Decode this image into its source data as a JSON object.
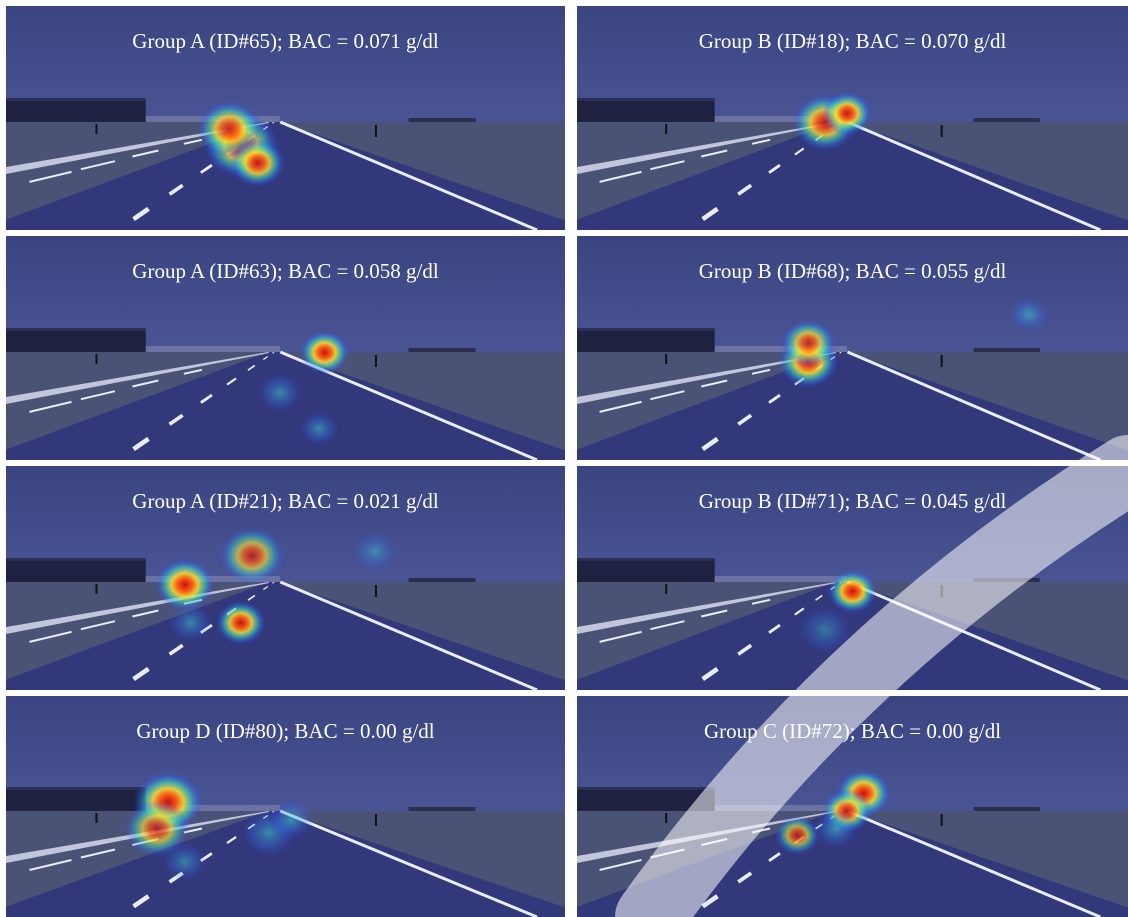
{
  "panels": [
    {
      "caption": "Group A (ID#65); BAC = 0.071 g/dl",
      "blobs": [
        [
          0.42,
          0.62,
          30,
          0.85
        ],
        [
          0.4,
          0.55,
          26,
          0.8
        ],
        [
          0.45,
          0.7,
          22,
          0.9
        ]
      ]
    },
    {
      "caption": "Group B (ID#18); BAC = 0.070 g/dl",
      "blobs": [
        [
          0.45,
          0.52,
          26,
          0.85
        ],
        [
          0.49,
          0.48,
          20,
          0.95
        ]
      ]
    },
    {
      "caption": "Group A (ID#63); BAC = 0.058 g/dl",
      "blobs": [
        [
          0.57,
          0.52,
          20,
          1.0
        ],
        [
          0.49,
          0.7,
          18,
          0.35
        ],
        [
          0.56,
          0.86,
          16,
          0.35
        ]
      ]
    },
    {
      "caption": "Group B (ID#68); BAC = 0.055 g/dl",
      "blobs": [
        [
          0.42,
          0.56,
          24,
          1.0
        ],
        [
          0.42,
          0.48,
          22,
          0.75
        ],
        [
          0.82,
          0.35,
          16,
          0.35
        ]
      ]
    },
    {
      "caption": "Group A (ID#21); BAC = 0.021 g/dl",
      "blobs": [
        [
          0.32,
          0.53,
          24,
          1.0
        ],
        [
          0.44,
          0.4,
          26,
          0.6
        ],
        [
          0.42,
          0.7,
          20,
          0.95
        ],
        [
          0.33,
          0.7,
          18,
          0.3
        ],
        [
          0.66,
          0.38,
          18,
          0.2
        ]
      ]
    },
    {
      "caption": "Group B (ID#71); BAC = 0.045 g/dl",
      "blobs": [
        [
          0.5,
          0.56,
          20,
          1.0
        ],
        [
          0.45,
          0.73,
          22,
          0.15
        ]
      ]
    },
    {
      "caption": "Group D (ID#80); BAC = 0.00 g/dl",
      "blobs": [
        [
          0.29,
          0.48,
          28,
          1.0
        ],
        [
          0.27,
          0.6,
          26,
          0.6
        ],
        [
          0.47,
          0.62,
          22,
          0.4
        ],
        [
          0.51,
          0.56,
          18,
          0.45
        ],
        [
          0.32,
          0.75,
          18,
          0.25
        ]
      ]
    },
    {
      "caption": "Group C (ID#72); BAC = 0.00 g/dl",
      "blobs": [
        [
          0.52,
          0.44,
          22,
          1.0
        ],
        [
          0.49,
          0.52,
          20,
          0.85
        ],
        [
          0.4,
          0.63,
          18,
          0.6
        ],
        [
          0.47,
          0.6,
          18,
          0.45
        ]
      ]
    }
  ],
  "colors": {
    "sky_top": "#3a4480",
    "sky_bottom": "#5a64a8",
    "field": "#4a5276",
    "road": "#32387a",
    "lines": "#e8ecf6",
    "text": "#ffffff"
  }
}
